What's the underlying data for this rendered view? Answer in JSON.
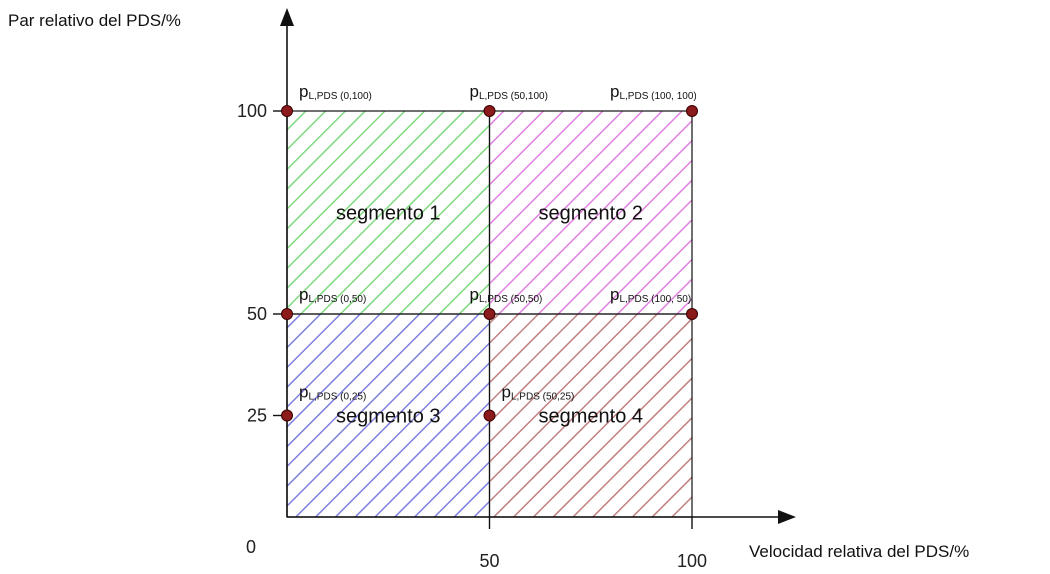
{
  "chart_data": {
    "type": "area",
    "xlabel": "Velocidad relativa del PDS/%",
    "ylabel": "Par relativo del PDS/%",
    "xlim": [
      0,
      100
    ],
    "ylim": [
      0,
      100
    ],
    "origin_label": "0",
    "x_ticks": [
      {
        "value": 50,
        "label": "50"
      },
      {
        "value": 100,
        "label": "100"
      }
    ],
    "y_ticks": [
      {
        "value": 25,
        "label": "25"
      },
      {
        "value": 50,
        "label": "50"
      },
      {
        "value": 100,
        "label": "100"
      }
    ],
    "segments": [
      {
        "name": "segmento 1",
        "x": [
          0,
          50
        ],
        "y": [
          50,
          100
        ],
        "color": "#7fd97f"
      },
      {
        "name": "segmento 2",
        "x": [
          50,
          100
        ],
        "y": [
          50,
          100
        ],
        "color": "#e080e0"
      },
      {
        "name": "segmento 3",
        "x": [
          0,
          50
        ],
        "y": [
          0,
          50
        ],
        "color": "#7f7fdf"
      },
      {
        "name": "segmento 4",
        "x": [
          50,
          100
        ],
        "y": [
          0,
          50
        ],
        "color": "#c08080"
      }
    ],
    "points": [
      {
        "x": 0,
        "y": 100,
        "label_main": "p",
        "label_sub": "L,PDS (0,100)"
      },
      {
        "x": 50,
        "y": 100,
        "label_main": "p",
        "label_sub": "L,PDS (50,100)"
      },
      {
        "x": 100,
        "y": 100,
        "label_main": "p",
        "label_sub": "L,PDS (100, 100)"
      },
      {
        "x": 0,
        "y": 50,
        "label_main": "p",
        "label_sub": "L,PDS (0,50)"
      },
      {
        "x": 50,
        "y": 50,
        "label_main": "p",
        "label_sub": "L,PDS (50,50)"
      },
      {
        "x": 100,
        "y": 50,
        "label_main": "p",
        "label_sub": "L,PDS (100, 50)"
      },
      {
        "x": 0,
        "y": 25,
        "label_main": "p",
        "label_sub": "L,PDS (0,25)"
      },
      {
        "x": 50,
        "y": 25,
        "label_main": "p",
        "label_sub": "L,PDS (50,25)"
      }
    ],
    "point_color": "#8b1a1a",
    "grid": false
  }
}
